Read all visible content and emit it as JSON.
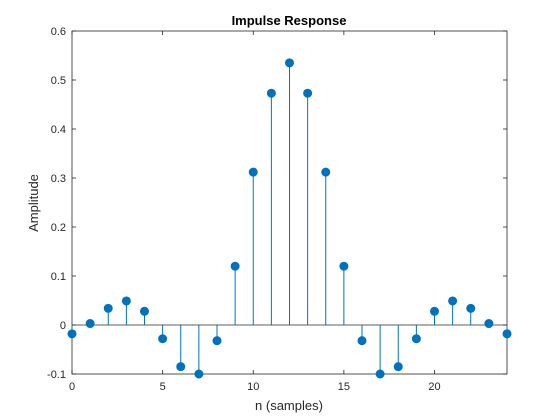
{
  "chart_data": {
    "type": "stem",
    "title": "Impulse Response",
    "xlabel": "n (samples)",
    "ylabel": "Amplitude",
    "xlim": [
      0,
      24
    ],
    "ylim": [
      -0.1,
      0.6
    ],
    "xticks": [
      0,
      5,
      10,
      15,
      20
    ],
    "yticks": [
      -0.1,
      0,
      0.1,
      0.2,
      0.3,
      0.4,
      0.5,
      0.6
    ],
    "x": [
      0,
      1,
      2,
      3,
      4,
      5,
      6,
      7,
      8,
      9,
      10,
      11,
      12,
      13,
      14,
      15,
      16,
      17,
      18,
      19,
      20,
      21,
      22,
      23,
      24
    ],
    "values": [
      -0.018,
      0.003,
      0.034,
      0.049,
      0.028,
      -0.028,
      -0.085,
      -0.1,
      -0.032,
      0.12,
      0.312,
      0.473,
      0.535,
      0.473,
      0.312,
      0.12,
      -0.032,
      -0.1,
      -0.085,
      -0.028,
      0.028,
      0.049,
      0.034,
      0.003,
      -0.018
    ],
    "grid": false,
    "color": "#0072BD",
    "axis_color": "#262626"
  }
}
